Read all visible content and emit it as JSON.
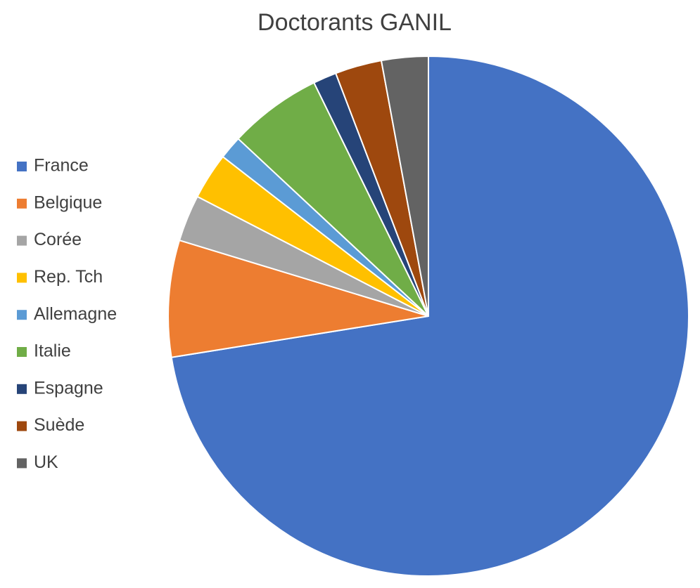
{
  "chart_data": {
    "type": "pie",
    "title": "Doctorants GANIL",
    "categories": [
      "France",
      "Belgique",
      "Corée",
      "Rep. Tch",
      "Allemagne",
      "Italie",
      "Espagne",
      "Suède",
      "UK"
    ],
    "values": [
      50,
      5,
      2,
      2,
      1,
      4,
      1,
      2,
      2
    ],
    "colors": [
      "#4472c4",
      "#ed7d31",
      "#a5a5a5",
      "#ffc000",
      "#5b9bd5",
      "#70ad47",
      "#264478",
      "#9e480e",
      "#636363"
    ],
    "legend": "left"
  }
}
